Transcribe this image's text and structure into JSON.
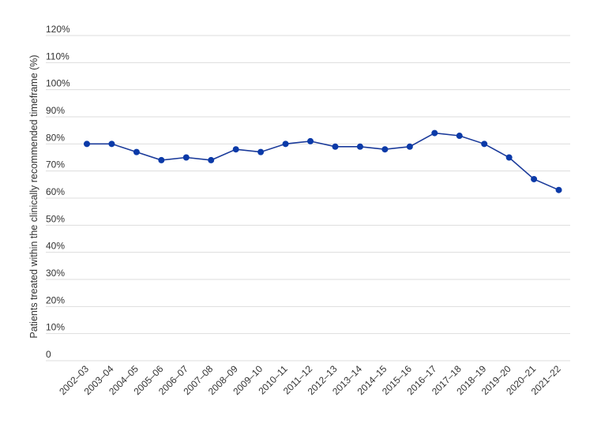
{
  "chart_data": {
    "type": "line",
    "title": "",
    "xlabel": "",
    "ylabel": "Patients treated within the clinically recommended timeframe (%)",
    "ylim": [
      0,
      120
    ],
    "yticks": [
      0,
      10,
      20,
      30,
      40,
      50,
      60,
      70,
      80,
      90,
      100,
      110,
      120
    ],
    "ytick_labels": [
      "0",
      "10%",
      "20%",
      "30%",
      "40%",
      "50%",
      "60%",
      "70%",
      "80%",
      "90%",
      "100%",
      "110%",
      "120%"
    ],
    "grid": true,
    "legend": "none",
    "colors": {
      "line": "#1a3a9a",
      "marker": "#0b3aa8",
      "grid": "#dddddd",
      "text": "#333333"
    },
    "categories": [
      "2002–03",
      "2003–04",
      "2004–05",
      "2005–06",
      "2006–07",
      "2007–08",
      "2008–09",
      "2009–10",
      "2010–11",
      "2011–12",
      "2012–13",
      "2013–14",
      "2014–15",
      "2015–16",
      "2016–17",
      "2017–18",
      "2018–19",
      "2019–20",
      "2020–21",
      "2021–22"
    ],
    "series": [
      {
        "values": [
          80,
          80,
          77,
          74,
          75,
          74,
          78,
          77,
          80,
          81,
          79,
          79,
          78,
          79,
          84,
          83,
          80,
          75,
          67,
          63
        ]
      }
    ]
  }
}
